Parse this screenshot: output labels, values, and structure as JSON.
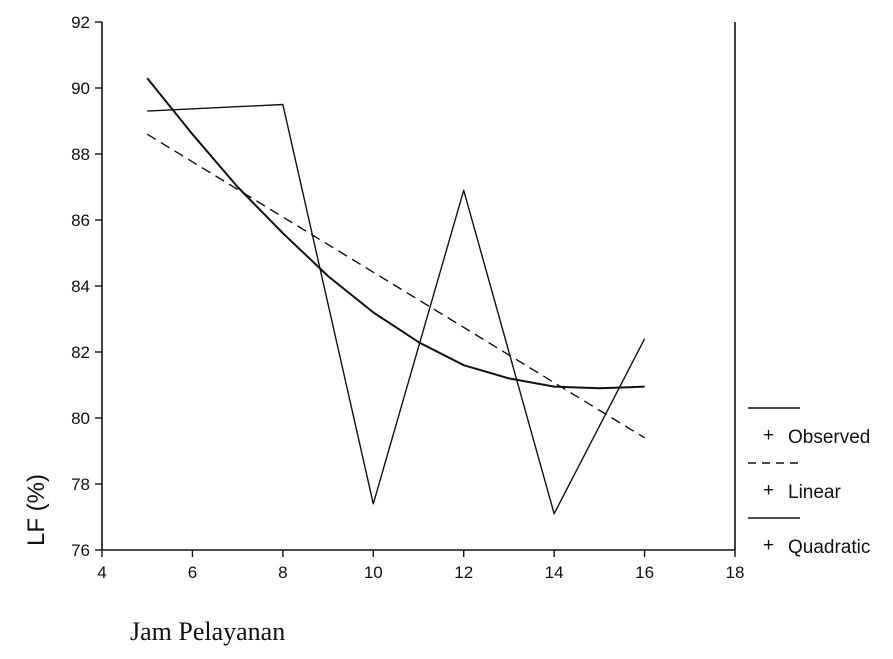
{
  "chart_data": {
    "type": "line",
    "xlabel": "Jam Pelayanan",
    "ylabel": "LF (%)",
    "xlim": [
      4,
      18
    ],
    "ylim": [
      76,
      92
    ],
    "xticks": [
      "4",
      "6",
      "8",
      "10",
      "12",
      "14",
      "16",
      "18"
    ],
    "yticks": [
      "76",
      "78",
      "80",
      "82",
      "84",
      "86",
      "88",
      "90",
      "92"
    ],
    "grid": false,
    "legend_position": "right",
    "series": [
      {
        "name": "Observed",
        "style": "solid",
        "x": [
          5,
          8,
          10,
          12,
          14,
          16
        ],
        "y": [
          89.3,
          89.5,
          77.4,
          86.9,
          77.1,
          82.4
        ]
      },
      {
        "name": "Linear",
        "style": "dashed",
        "x": [
          5,
          16
        ],
        "y": [
          88.6,
          79.4
        ]
      },
      {
        "name": "Quadratic",
        "style": "solid-smooth",
        "x": [
          5,
          6,
          7,
          8,
          9,
          10,
          11,
          12,
          13,
          14,
          15,
          16
        ],
        "y": [
          90.3,
          88.6,
          87.0,
          85.6,
          84.3,
          83.2,
          82.3,
          81.6,
          81.2,
          80.95,
          80.9,
          80.95
        ]
      }
    ]
  }
}
